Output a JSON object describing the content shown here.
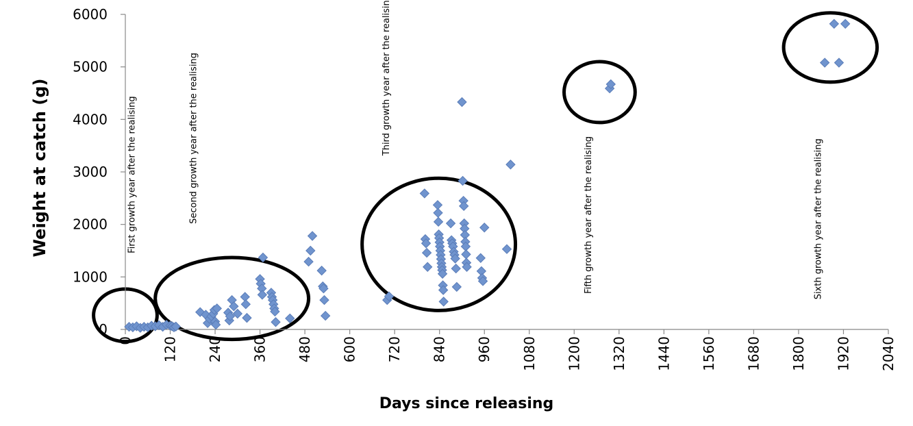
{
  "chart_data": {
    "type": "scatter",
    "title": "",
    "xlabel": "Days since releasing",
    "ylabel": "Weight at catch (g)",
    "xlim": [
      0,
      2040
    ],
    "ylim": [
      0,
      6000
    ],
    "xticks": [
      0,
      120,
      240,
      360,
      480,
      600,
      720,
      840,
      960,
      1080,
      1200,
      1320,
      1440,
      1560,
      1680,
      1800,
      1920,
      2040
    ],
    "yticks": [
      0,
      1000,
      2000,
      3000,
      4000,
      5000,
      6000
    ],
    "grid": false,
    "legend": "none",
    "marker_color": "#7094CE",
    "marker_edge": "#5B7DB8",
    "series": [
      {
        "values": [
          [
            10,
            50
          ],
          [
            20,
            40
          ],
          [
            30,
            60
          ],
          [
            40,
            30
          ],
          [
            50,
            50
          ],
          [
            60,
            40
          ],
          [
            70,
            70
          ],
          [
            80,
            60
          ],
          [
            90,
            80
          ],
          [
            100,
            50
          ],
          [
            110,
            90
          ],
          [
            120,
            70
          ],
          [
            125,
            60
          ],
          [
            130,
            40
          ],
          [
            135,
            55
          ],
          [
            200,
            330
          ],
          [
            215,
            280
          ],
          [
            220,
            120
          ],
          [
            225,
            200
          ],
          [
            230,
            250
          ],
          [
            235,
            300
          ],
          [
            238,
            370
          ],
          [
            240,
            150
          ],
          [
            242,
            90
          ],
          [
            245,
            400
          ],
          [
            275,
            320
          ],
          [
            278,
            170
          ],
          [
            280,
            250
          ],
          [
            285,
            560
          ],
          [
            290,
            440
          ],
          [
            300,
            300
          ],
          [
            320,
            620
          ],
          [
            322,
            480
          ],
          [
            325,
            220
          ],
          [
            360,
            960
          ],
          [
            362,
            870
          ],
          [
            365,
            780
          ],
          [
            366,
            660
          ],
          [
            368,
            1370
          ],
          [
            390,
            700
          ],
          [
            392,
            620
          ],
          [
            394,
            560
          ],
          [
            396,
            480
          ],
          [
            398,
            400
          ],
          [
            400,
            340
          ],
          [
            402,
            140
          ],
          [
            440,
            210
          ],
          [
            490,
            1290
          ],
          [
            495,
            1500
          ],
          [
            500,
            1780
          ],
          [
            525,
            1120
          ],
          [
            528,
            820
          ],
          [
            530,
            780
          ],
          [
            532,
            560
          ],
          [
            535,
            260
          ],
          [
            700,
            560
          ],
          [
            705,
            630
          ],
          [
            800,
            2590
          ],
          [
            802,
            1720
          ],
          [
            804,
            1640
          ],
          [
            806,
            1460
          ],
          [
            808,
            1190
          ],
          [
            835,
            2370
          ],
          [
            836,
            2220
          ],
          [
            837,
            2050
          ],
          [
            838,
            1810
          ],
          [
            839,
            1740
          ],
          [
            840,
            1660
          ],
          [
            841,
            1580
          ],
          [
            842,
            1500
          ],
          [
            843,
            1420
          ],
          [
            844,
            1340
          ],
          [
            845,
            1260
          ],
          [
            846,
            1190
          ],
          [
            847,
            1130
          ],
          [
            848,
            1060
          ],
          [
            849,
            840
          ],
          [
            850,
            750
          ],
          [
            851,
            530
          ],
          [
            870,
            2020
          ],
          [
            872,
            1700
          ],
          [
            874,
            1640
          ],
          [
            876,
            1580
          ],
          [
            878,
            1480
          ],
          [
            880,
            1420
          ],
          [
            882,
            1350
          ],
          [
            884,
            1160
          ],
          [
            886,
            810
          ],
          [
            900,
            4330
          ],
          [
            902,
            2830
          ],
          [
            904,
            2450
          ],
          [
            905,
            2350
          ],
          [
            906,
            2020
          ],
          [
            907,
            1920
          ],
          [
            908,
            1800
          ],
          [
            909,
            1670
          ],
          [
            910,
            1580
          ],
          [
            911,
            1430
          ],
          [
            912,
            1270
          ],
          [
            913,
            1190
          ],
          [
            950,
            1360
          ],
          [
            952,
            1110
          ],
          [
            954,
            980
          ],
          [
            956,
            920
          ],
          [
            960,
            1940
          ],
          [
            1020,
            1530
          ],
          [
            1030,
            3140
          ],
          [
            1295,
            4590
          ],
          [
            1298,
            4670
          ],
          [
            1870,
            5080
          ],
          [
            1895,
            5820
          ],
          [
            1908,
            5080
          ],
          [
            1925,
            5820
          ]
        ]
      }
    ],
    "annotations": [
      {
        "text": "First growth  year after the realising",
        "x": 25,
        "y": 1450
      },
      {
        "text": "Second growth  year after the realising",
        "x": 190,
        "y": 2010
      },
      {
        "text": "Third growth  year after the realising",
        "x": 705,
        "y": 3310
      },
      {
        "text": "Fifth growth  year after the realising",
        "x": 1245,
        "y": 680
      },
      {
        "text": "Sixth growth  year after the realising",
        "x": 1860,
        "y": 570
      }
    ],
    "ellipses": [
      {
        "cx": 0,
        "cy": 270,
        "rx": 85,
        "ry": 500
      },
      {
        "cx": 285,
        "cy": 590,
        "rx": 205,
        "ry": 780
      },
      {
        "cx": 838,
        "cy": 1620,
        "rx": 205,
        "ry": 1260
      },
      {
        "cx": 1268,
        "cy": 4520,
        "rx": 95,
        "ry": 580
      },
      {
        "cx": 1885,
        "cy": 5370,
        "rx": 125,
        "ry": 660
      }
    ]
  }
}
